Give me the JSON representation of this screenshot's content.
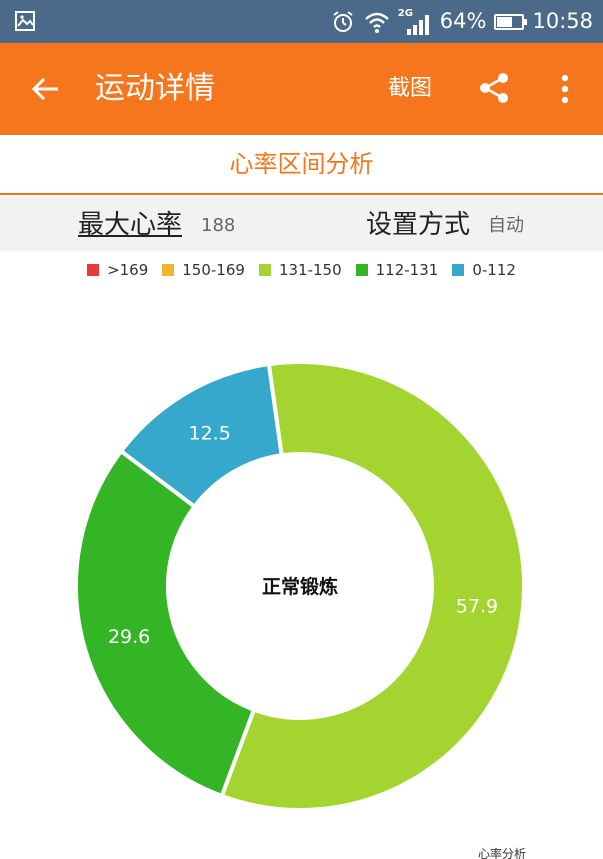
{
  "status_bar": {
    "network": "2G",
    "battery_percent": "64%",
    "battery_level": 0.64,
    "time": "10:58",
    "icons": [
      "image-icon",
      "alarm-icon",
      "wifi-icon",
      "signal-icon",
      "battery-icon"
    ]
  },
  "app_bar": {
    "title": "运动详情",
    "screenshot_label": "截图",
    "icons": [
      "back-arrow-icon",
      "share-icon",
      "more-vert-icon"
    ]
  },
  "section": {
    "title": "心率区间分析"
  },
  "info": {
    "max_hr_label": "最大心率",
    "max_hr_value": "188",
    "setting_label": "设置方式",
    "setting_value": "自动"
  },
  "colors": {
    "accent": "#f5761c",
    "status_bar": "#4b6a8a"
  },
  "chart_data": {
    "type": "pie",
    "donut": true,
    "center_label": "正常锻炼",
    "legend_position": "top",
    "legend": [
      {
        "name": ">169",
        "color": "#e8393f"
      },
      {
        "name": "150-169",
        "color": "#f0b630"
      },
      {
        "name": "131-150",
        "color": "#a3d42f"
      },
      {
        "name": "112-131",
        "color": "#33b526"
      },
      {
        "name": "0-112",
        "color": "#35a8cc"
      }
    ],
    "slices": [
      {
        "name": "131-150",
        "value": 57.9,
        "label": "57.9",
        "color": "#a3d42f"
      },
      {
        "name": "112-131",
        "value": 29.6,
        "label": "29.6",
        "color": "#33b526"
      },
      {
        "name": "0-112",
        "value": 12.5,
        "label": "12.5",
        "color": "#35a8cc"
      }
    ]
  },
  "footer": {
    "partial_label": "心率分析"
  }
}
